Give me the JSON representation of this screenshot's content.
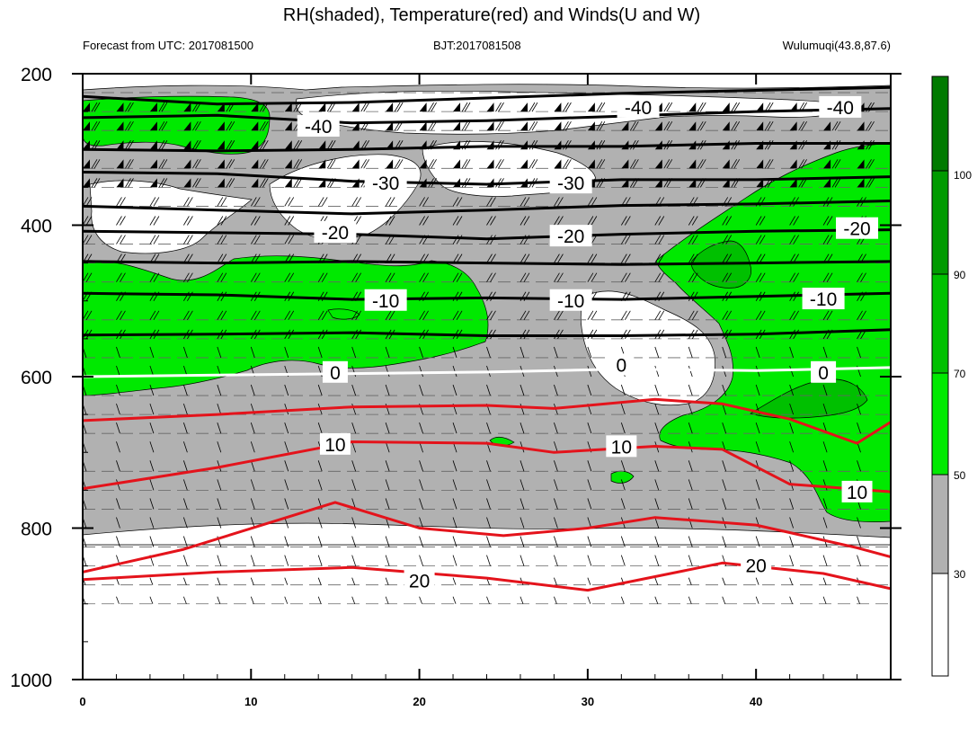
{
  "chart_data": {
    "type": "heatmap",
    "title": "RH(shaded), Temperature(red) and Winds(U and W)",
    "left_subtitle": "Forecast from UTC: 2017081500",
    "center_subtitle": "BJT:2017081508",
    "right_subtitle": "Wulumuqi(43.8,87.6)",
    "xlim": [
      0,
      48
    ],
    "ylim_pressure": [
      200,
      1000
    ],
    "y_reversed": true,
    "x_major_ticks": [
      "0",
      "10",
      "20",
      "30",
      "40"
    ],
    "y_major_ticks": [
      "200",
      "400",
      "600",
      "800",
      "1000"
    ],
    "colorbar": {
      "levels": [
        "30",
        "50",
        "70",
        "90",
        "100"
      ],
      "colors": [
        "#ffffff",
        "#b1b1b1",
        "#00e900",
        "#00c000",
        "#009a00",
        "#007a00"
      ]
    },
    "rh_regions": {
      "gray_lt_50": "RH 30-50% (gray shading)",
      "green_50_70": "RH 50-70% (light green shading)",
      "darkgreen_70_90": "RH 70-90% (green shading)"
    },
    "isotherm_labels": [
      {
        "value": "-40",
        "x": 14,
        "p": 270
      },
      {
        "value": "-40",
        "x": 33,
        "p": 245
      },
      {
        "value": "-40",
        "x": 45,
        "p": 245
      },
      {
        "value": "-30",
        "x": 18,
        "p": 345
      },
      {
        "value": "-30",
        "x": 29,
        "p": 345
      },
      {
        "value": "-20",
        "x": 15,
        "p": 410
      },
      {
        "value": "-20",
        "x": 29,
        "p": 415
      },
      {
        "value": "-20",
        "x": 46,
        "p": 405
      },
      {
        "value": "-10",
        "x": 18,
        "p": 500
      },
      {
        "value": "-10",
        "x": 29,
        "p": 500
      },
      {
        "value": "-10",
        "x": 44,
        "p": 498
      },
      {
        "value": "0",
        "x": 15,
        "p": 595
      },
      {
        "value": "0",
        "x": 32,
        "p": 585
      },
      {
        "value": "0",
        "x": 44,
        "p": 595
      },
      {
        "value": "10",
        "x": 15,
        "p": 690
      },
      {
        "value": "10",
        "x": 32,
        "p": 693
      },
      {
        "value": "10",
        "x": 46,
        "p": 753
      },
      {
        "value": "20",
        "x": 20,
        "p": 870
      },
      {
        "value": "20",
        "x": 40,
        "p": 850
      }
    ],
    "isotherm_colors": {
      "negative": "#000000",
      "zero": "#ffffff",
      "positive": "#e4131b"
    }
  }
}
